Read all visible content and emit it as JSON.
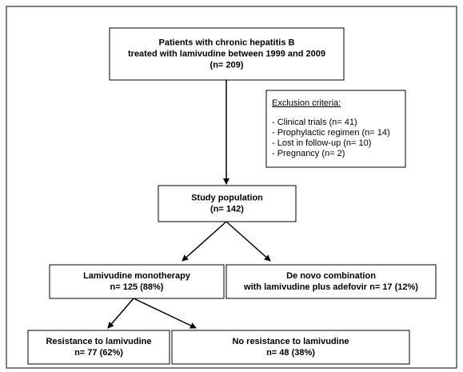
{
  "nodes": [
    {
      "lines": [
        "Patients with chronic hepatitis B",
        "treated with lamivudine between 1999 and 2009",
        "(n= 209)"
      ]
    },
    {
      "lines": [
        "Study population",
        "(n= 142)"
      ]
    },
    {
      "lines": [
        "Lamivudine monotherapy",
        "n= 125 (88%)"
      ]
    },
    {
      "lines": [
        "De novo combination",
        "with lamivudine plus adefovir n= 17 (12%)"
      ]
    },
    {
      "lines": [
        "Resistance to lamivudine",
        "n= 77 (62%)"
      ]
    },
    {
      "lines": [
        "No resistance to lamivudine",
        "n= 48 (38%)"
      ]
    }
  ],
  "exclusion": {
    "title": "Exclusion criteria:",
    "items": [
      "- Clinical trials (n= 41)",
      "- Prophylactic regimen (n= 14)",
      "- Lost in follow-up (n= 10)",
      "- Pregnancy (n= 2)"
    ]
  }
}
